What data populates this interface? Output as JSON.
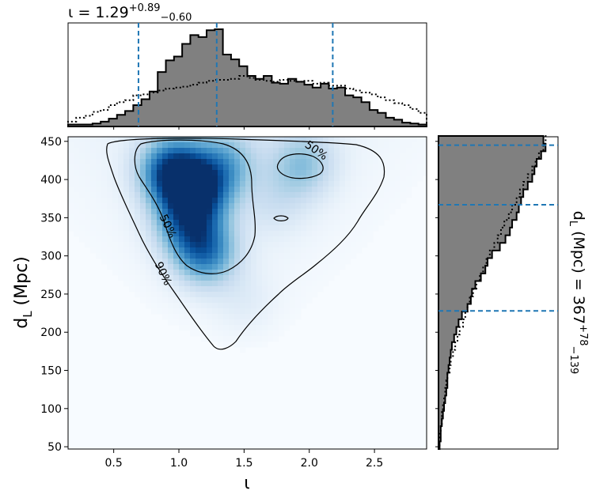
{
  "chart_data": {
    "type": "corner-plot",
    "joint": {
      "type": "heatmap",
      "xlabel": "ι",
      "ylabel_main": "d",
      "ylabel_sub": "L",
      "ylabel_unit": " (Mpc)",
      "xlim": [
        0.15,
        2.9
      ],
      "ylim": [
        47,
        456
      ],
      "x_ticks": [
        0.5,
        1.0,
        1.5,
        2.0,
        2.5
      ],
      "x_tick_labels": [
        "0.5",
        "1.0",
        "1.5",
        "2.0",
        "2.5"
      ],
      "y_ticks": [
        50,
        100,
        150,
        200,
        250,
        300,
        350,
        400,
        450
      ],
      "y_tick_labels": [
        "50",
        "100",
        "150",
        "200",
        "250",
        "300",
        "350",
        "400",
        "450"
      ],
      "colormap": "Blues",
      "density_peaks": [
        {
          "x": 0.95,
          "y": 410,
          "weight": 1.0
        },
        {
          "x": 1.15,
          "y": 385,
          "weight": 0.85
        },
        {
          "x": 1.2,
          "y": 305,
          "weight": 0.75
        },
        {
          "x": 1.05,
          "y": 345,
          "weight": 0.6
        },
        {
          "x": 1.35,
          "y": 420,
          "weight": 0.45
        },
        {
          "x": 1.95,
          "y": 420,
          "weight": 0.4
        },
        {
          "x": 1.75,
          "y": 370,
          "weight": 0.15
        },
        {
          "x": 1.5,
          "y": 240,
          "weight": 0.1
        }
      ],
      "contours": [
        {
          "level": "50%",
          "label": "50%"
        },
        {
          "level": "90%",
          "label": "90%"
        }
      ]
    },
    "top_marginal": {
      "type": "histogram",
      "parameter": "ι",
      "title_prefix": "ι = 1.29",
      "title_sup": "+0.89",
      "title_sub": "−0.60",
      "median": 1.29,
      "lower": 0.69,
      "upper": 2.18,
      "bin_edges_start": 0.15,
      "bin_width": 0.0625,
      "posterior_counts": [
        0.02,
        0.02,
        0.02,
        0.03,
        0.05,
        0.08,
        0.12,
        0.16,
        0.22,
        0.28,
        0.36,
        0.56,
        0.68,
        0.72,
        0.85,
        0.94,
        0.92,
        0.99,
        1.0,
        0.74,
        0.69,
        0.62,
        0.52,
        0.49,
        0.52,
        0.45,
        0.44,
        0.49,
        0.46,
        0.43,
        0.4,
        0.44,
        0.39,
        0.4,
        0.32,
        0.3,
        0.25,
        0.17,
        0.14,
        0.09,
        0.07,
        0.04,
        0.03,
        0.02
      ],
      "prior_counts": [
        0.05,
        0.09,
        0.11,
        0.15,
        0.17,
        0.22,
        0.25,
        0.27,
        0.32,
        0.33,
        0.35,
        0.37,
        0.39,
        0.4,
        0.41,
        0.43,
        0.45,
        0.47,
        0.48,
        0.48,
        0.49,
        0.52,
        0.5,
        0.48,
        0.47,
        0.46,
        0.48,
        0.47,
        0.46,
        0.47,
        0.44,
        0.45,
        0.42,
        0.42,
        0.39,
        0.37,
        0.35,
        0.33,
        0.3,
        0.27,
        0.24,
        0.22,
        0.18,
        0.14
      ]
    },
    "right_marginal": {
      "type": "histogram",
      "parameter": "d_L",
      "title_main": "d",
      "title_sub": "L",
      "title_rest": " (Mpc) = 367",
      "title_sup": "+78",
      "title_sub2": "−139",
      "median": 367,
      "lower": 228,
      "upper": 445,
      "bin_edges_start": 47,
      "bin_width": 10,
      "posterior_counts": [
        0.01,
        0.02,
        0.02,
        0.03,
        0.04,
        0.05,
        0.06,
        0.07,
        0.08,
        0.08,
        0.09,
        0.1,
        0.11,
        0.12,
        0.14,
        0.16,
        0.18,
        0.21,
        0.26,
        0.29,
        0.3,
        0.33,
        0.38,
        0.42,
        0.44,
        0.48,
        0.55,
        0.6,
        0.64,
        0.66,
        0.7,
        0.72,
        0.74,
        0.76,
        0.8,
        0.84,
        0.86,
        0.88,
        0.92,
        0.96,
        0.94
      ],
      "prior_counts": [
        0.01,
        0.01,
        0.02,
        0.03,
        0.03,
        0.04,
        0.05,
        0.06,
        0.07,
        0.08,
        0.1,
        0.11,
        0.13,
        0.15,
        0.17,
        0.19,
        0.22,
        0.24,
        0.26,
        0.28,
        0.31,
        0.34,
        0.37,
        0.4,
        0.43,
        0.46,
        0.5,
        0.53,
        0.56,
        0.59,
        0.63,
        0.66,
        0.7,
        0.73,
        0.76,
        0.8,
        0.84,
        0.87,
        0.9,
        0.94,
        0.96
      ]
    },
    "colors": {
      "posterior_fill": "#808080",
      "outline": "#000000",
      "quantile_line": "#1f77b4"
    }
  }
}
